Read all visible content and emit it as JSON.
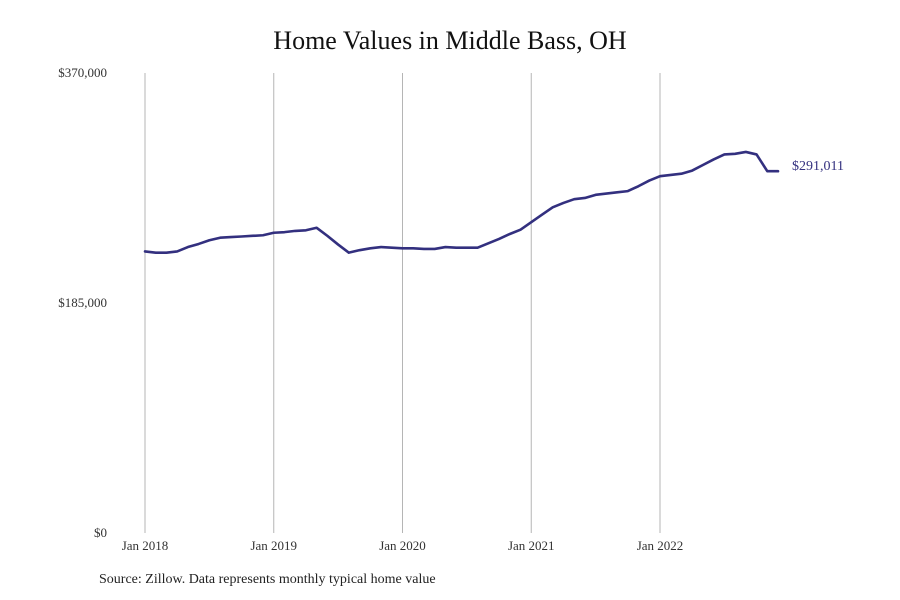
{
  "chart_data": {
    "type": "line",
    "title": "Home Values in Middle Bass, OH",
    "xlabel": "",
    "ylabel": "",
    "ylim": [
      0,
      370000
    ],
    "y_ticks": [
      0,
      185000,
      370000
    ],
    "y_tick_labels": [
      "$0",
      "$185,000",
      "$370,000"
    ],
    "x_ticks": [
      "2018-01",
      "2019-01",
      "2020-01",
      "2021-01",
      "2022-01"
    ],
    "x_tick_labels": [
      "Jan 2018",
      "Jan 2019",
      "Jan 2020",
      "Jan 2021",
      "Jan 2022"
    ],
    "grid": "vertical",
    "line_color": "#33307f",
    "end_label": "$291,011",
    "x": [
      "2018-01",
      "2018-02",
      "2018-03",
      "2018-04",
      "2018-05",
      "2018-06",
      "2018-07",
      "2018-08",
      "2018-09",
      "2018-10",
      "2018-11",
      "2018-12",
      "2019-01",
      "2019-02",
      "2019-03",
      "2019-04",
      "2019-05",
      "2019-06",
      "2019-07",
      "2019-08",
      "2019-09",
      "2019-10",
      "2019-11",
      "2019-12",
      "2020-01",
      "2020-02",
      "2020-03",
      "2020-04",
      "2020-05",
      "2020-06",
      "2020-07",
      "2020-08",
      "2020-09",
      "2020-10",
      "2020-11",
      "2020-12",
      "2021-01",
      "2021-02",
      "2021-03",
      "2021-04",
      "2021-05",
      "2021-06",
      "2021-07",
      "2021-08",
      "2021-09",
      "2021-10",
      "2021-11",
      "2021-12",
      "2022-01",
      "2022-02",
      "2022-03",
      "2022-04",
      "2022-05",
      "2022-06",
      "2022-07",
      "2022-08",
      "2022-09",
      "2022-10",
      "2022-11",
      "2022-12"
    ],
    "series": [
      {
        "values": [
          226500,
          225500,
          225500,
          226500,
          230000,
          232500,
          235500,
          237500,
          238000,
          238500,
          239000,
          239500,
          241500,
          242000,
          243000,
          243500,
          245500,
          239000,
          232000,
          225500,
          227500,
          229000,
          230000,
          229500,
          229000,
          229000,
          228500,
          228500,
          230000,
          229500,
          229500,
          229500,
          233000,
          236500,
          240500,
          244000,
          250000,
          256000,
          262000,
          265500,
          268500,
          269500,
          272000,
          273000,
          274000,
          275000,
          279000,
          283500,
          287000,
          288000,
          289000,
          291500,
          296000,
          300500,
          304500,
          305000,
          306500,
          304500,
          291000,
          291011
        ]
      }
    ]
  },
  "source_note": "Source: Zillow. Data represents monthly typical home value"
}
